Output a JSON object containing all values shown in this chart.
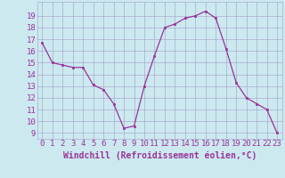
{
  "hours": [
    0,
    1,
    2,
    3,
    4,
    5,
    6,
    7,
    8,
    9,
    10,
    11,
    12,
    13,
    14,
    15,
    16,
    17,
    18,
    19,
    20,
    21,
    22,
    23
  ],
  "values": [
    16.7,
    15.0,
    14.8,
    14.6,
    14.6,
    13.1,
    12.7,
    11.5,
    9.4,
    9.6,
    13.0,
    15.6,
    18.0,
    18.3,
    18.8,
    19.0,
    19.4,
    18.8,
    16.2,
    13.3,
    12.0,
    11.5,
    11.0,
    9.0
  ],
  "line_color": "#993399",
  "marker": "s",
  "marker_size": 1.8,
  "bg_color": "#cce9f0",
  "grid_color": "#aaaacc",
  "xlabel": "Windchill (Refroidissement éolien,°C)",
  "xlabel_color": "#993399",
  "tick_color": "#993399",
  "ylim": [
    8.5,
    20.2
  ],
  "xlim": [
    -0.5,
    23.5
  ],
  "yticks": [
    9,
    10,
    11,
    12,
    13,
    14,
    15,
    16,
    17,
    18,
    19
  ],
  "xticks": [
    0,
    1,
    2,
    3,
    4,
    5,
    6,
    7,
    8,
    9,
    10,
    11,
    12,
    13,
    14,
    15,
    16,
    17,
    18,
    19,
    20,
    21,
    22,
    23
  ],
  "xlabel_fontsize": 7.0,
  "tick_fontsize": 6.5,
  "linewidth": 0.9
}
